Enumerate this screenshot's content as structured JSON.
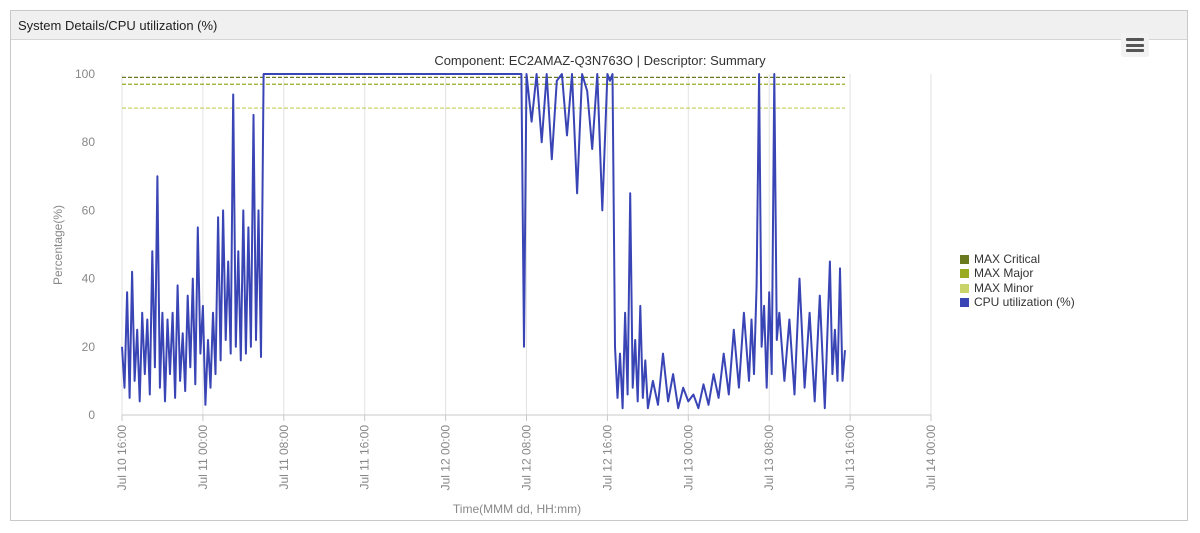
{
  "panel": {
    "title": "System Details/CPU utilization (%)",
    "menu_icon": "hamburger-menu-icon"
  },
  "colors": {
    "max_critical": "#6b7a1e",
    "max_major": "#9aab22",
    "max_minor": "#c9d36a",
    "cpu": "#3a45b5",
    "grid": "#dddddd"
  },
  "chart_data": {
    "type": "line",
    "title": "Component: EC2AMAZ-Q3N763O | Descriptor: Summary",
    "xlabel": "Time(MMM dd, HH:mm)",
    "ylabel": "Percentage(%)",
    "ylim": [
      0,
      100
    ],
    "yticks": [
      "0",
      "20",
      "40",
      "60",
      "80",
      "100"
    ],
    "xlim": [
      "Jul 10 16:00",
      "Jul 14 00:00"
    ],
    "xticks": [
      "Jul 10 16:00",
      "Jul 11 00:00",
      "Jul 11 08:00",
      "Jul 11 16:00",
      "Jul 12 00:00",
      "Jul 12 08:00",
      "Jul 12 16:00",
      "Jul 13 00:00",
      "Jul 13 08:00",
      "Jul 13 16:00",
      "Jul 14 00:00"
    ],
    "legend_position": "right",
    "grid": true,
    "thresholds": [
      {
        "name": "MAX Critical",
        "value": 99,
        "color": "#6b7a1e"
      },
      {
        "name": "MAX Major",
        "value": 97,
        "color": "#9aab22"
      },
      {
        "name": "MAX Minor",
        "value": 90,
        "color": "#c9d36a"
      }
    ],
    "series": [
      {
        "name": "CPU utilization (%)",
        "color": "#3a45b5",
        "points": [
          [
            "Jul 10 16:00",
            20
          ],
          [
            "Jul 10 16:15",
            8
          ],
          [
            "Jul 10 16:30",
            36
          ],
          [
            "Jul 10 16:45",
            5
          ],
          [
            "Jul 10 17:00",
            42
          ],
          [
            "Jul 10 17:15",
            10
          ],
          [
            "Jul 10 17:30",
            25
          ],
          [
            "Jul 10 17:45",
            4
          ],
          [
            "Jul 10 18:00",
            30
          ],
          [
            "Jul 10 18:15",
            12
          ],
          [
            "Jul 10 18:30",
            28
          ],
          [
            "Jul 10 18:45",
            6
          ],
          [
            "Jul 10 19:00",
            48
          ],
          [
            "Jul 10 19:15",
            14
          ],
          [
            "Jul 10 19:30",
            70
          ],
          [
            "Jul 10 19:45",
            8
          ],
          [
            "Jul 10 20:00",
            30
          ],
          [
            "Jul 10 20:15",
            4
          ],
          [
            "Jul 10 20:30",
            28
          ],
          [
            "Jul 10 20:45",
            12
          ],
          [
            "Jul 10 21:00",
            30
          ],
          [
            "Jul 10 21:15",
            5
          ],
          [
            "Jul 10 21:30",
            38
          ],
          [
            "Jul 10 21:45",
            10
          ],
          [
            "Jul 10 22:00",
            24
          ],
          [
            "Jul 10 22:15",
            7
          ],
          [
            "Jul 10 22:30",
            35
          ],
          [
            "Jul 10 22:45",
            14
          ],
          [
            "Jul 10 23:00",
            40
          ],
          [
            "Jul 10 23:15",
            9
          ],
          [
            "Jul 10 23:30",
            55
          ],
          [
            "Jul 10 23:45",
            18
          ],
          [
            "Jul 11 00:00",
            32
          ],
          [
            "Jul 11 00:15",
            3
          ],
          [
            "Jul 11 00:30",
            22
          ],
          [
            "Jul 11 00:45",
            8
          ],
          [
            "Jul 11 01:00",
            30
          ],
          [
            "Jul 11 01:15",
            12
          ],
          [
            "Jul 11 01:30",
            58
          ],
          [
            "Jul 11 01:45",
            16
          ],
          [
            "Jul 11 02:00",
            60
          ],
          [
            "Jul 11 02:15",
            22
          ],
          [
            "Jul 11 02:30",
            45
          ],
          [
            "Jul 11 02:45",
            18
          ],
          [
            "Jul 11 03:00",
            94
          ],
          [
            "Jul 11 03:15",
            20
          ],
          [
            "Jul 11 03:30",
            48
          ],
          [
            "Jul 11 03:45",
            16
          ],
          [
            "Jul 11 04:00",
            60
          ],
          [
            "Jul 11 04:15",
            18
          ],
          [
            "Jul 11 04:30",
            55
          ],
          [
            "Jul 11 04:45",
            20
          ],
          [
            "Jul 11 05:00",
            88
          ],
          [
            "Jul 11 05:15",
            22
          ],
          [
            "Jul 11 05:30",
            60
          ],
          [
            "Jul 11 05:45",
            17
          ],
          [
            "Jul 11 06:00",
            100
          ],
          [
            "Jul 12 07:30",
            100
          ],
          [
            "Jul 12 07:45",
            20
          ],
          [
            "Jul 12 08:00",
            100
          ],
          [
            "Jul 12 08:30",
            86
          ],
          [
            "Jul 12 09:00",
            100
          ],
          [
            "Jul 12 09:30",
            80
          ],
          [
            "Jul 12 10:00",
            100
          ],
          [
            "Jul 12 10:30",
            75
          ],
          [
            "Jul 12 11:00",
            98
          ],
          [
            "Jul 12 11:30",
            100
          ],
          [
            "Jul 12 12:00",
            82
          ],
          [
            "Jul 12 12:30",
            100
          ],
          [
            "Jul 12 13:00",
            65
          ],
          [
            "Jul 12 13:30",
            100
          ],
          [
            "Jul 12 14:00",
            95
          ],
          [
            "Jul 12 14:30",
            78
          ],
          [
            "Jul 12 15:00",
            100
          ],
          [
            "Jul 12 15:30",
            60
          ],
          [
            "Jul 12 16:00",
            100
          ],
          [
            "Jul 12 16:15",
            98
          ],
          [
            "Jul 12 16:30",
            100
          ],
          [
            "Jul 12 16:45",
            20
          ],
          [
            "Jul 12 17:00",
            5
          ],
          [
            "Jul 12 17:15",
            18
          ],
          [
            "Jul 12 17:30",
            2
          ],
          [
            "Jul 12 17:45",
            30
          ],
          [
            "Jul 12 18:00",
            6
          ],
          [
            "Jul 12 18:15",
            65
          ],
          [
            "Jul 12 18:30",
            8
          ],
          [
            "Jul 12 18:45",
            22
          ],
          [
            "Jul 12 19:00",
            4
          ],
          [
            "Jul 12 19:15",
            32
          ],
          [
            "Jul 12 19:30",
            5
          ],
          [
            "Jul 12 19:45",
            16
          ],
          [
            "Jul 12 20:00",
            2
          ],
          [
            "Jul 12 20:30",
            10
          ],
          [
            "Jul 12 21:00",
            3
          ],
          [
            "Jul 12 21:30",
            18
          ],
          [
            "Jul 12 22:00",
            4
          ],
          [
            "Jul 12 22:30",
            12
          ],
          [
            "Jul 12 23:00",
            2
          ],
          [
            "Jul 12 23:30",
            8
          ],
          [
            "Jul 13 00:00",
            4
          ],
          [
            "Jul 13 00:30",
            6
          ],
          [
            "Jul 13 01:00",
            2
          ],
          [
            "Jul 13 01:30",
            9
          ],
          [
            "Jul 13 02:00",
            3
          ],
          [
            "Jul 13 02:30",
            12
          ],
          [
            "Jul 13 03:00",
            5
          ],
          [
            "Jul 13 03:30",
            18
          ],
          [
            "Jul 13 04:00",
            6
          ],
          [
            "Jul 13 04:30",
            25
          ],
          [
            "Jul 13 05:00",
            8
          ],
          [
            "Jul 13 05:30",
            30
          ],
          [
            "Jul 13 06:00",
            10
          ],
          [
            "Jul 13 06:15",
            28
          ],
          [
            "Jul 13 06:30",
            12
          ],
          [
            "Jul 13 06:45",
            38
          ],
          [
            "Jul 13 07:00",
            100
          ],
          [
            "Jul 13 07:15",
            20
          ],
          [
            "Jul 13 07:30",
            32
          ],
          [
            "Jul 13 07:45",
            8
          ],
          [
            "Jul 13 08:00",
            36
          ],
          [
            "Jul 13 08:15",
            12
          ],
          [
            "Jul 13 08:30",
            100
          ],
          [
            "Jul 13 08:45",
            22
          ],
          [
            "Jul 13 09:00",
            30
          ],
          [
            "Jul 13 09:30",
            10
          ],
          [
            "Jul 13 10:00",
            28
          ],
          [
            "Jul 13 10:30",
            6
          ],
          [
            "Jul 13 11:00",
            40
          ],
          [
            "Jul 13 11:30",
            8
          ],
          [
            "Jul 13 12:00",
            30
          ],
          [
            "Jul 13 12:30",
            4
          ],
          [
            "Jul 13 13:00",
            35
          ],
          [
            "Jul 13 13:30",
            2
          ],
          [
            "Jul 13 14:00",
            45
          ],
          [
            "Jul 13 14:15",
            12
          ],
          [
            "Jul 13 14:30",
            25
          ],
          [
            "Jul 13 14:45",
            10
          ],
          [
            "Jul 13 15:00",
            43
          ],
          [
            "Jul 13 15:15",
            10
          ],
          [
            "Jul 13 15:30",
            19
          ]
        ]
      }
    ]
  }
}
